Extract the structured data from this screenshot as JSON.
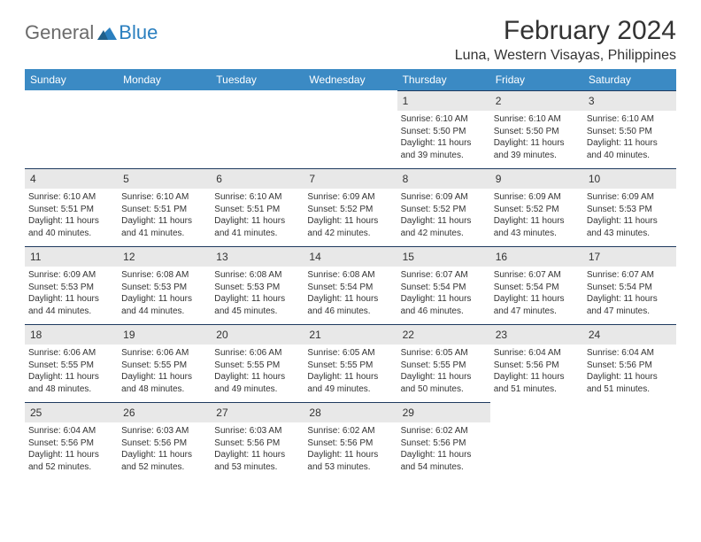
{
  "branding": {
    "logo_text_1": "General",
    "logo_text_2": "Blue",
    "logo_color_gray": "#6b6b6b",
    "logo_color_blue": "#2a7fbf"
  },
  "header": {
    "month_title": "February 2024",
    "location": "Luna, Western Visayas, Philippines"
  },
  "colors": {
    "header_row_bg": "#3b8ac4",
    "header_row_text": "#ffffff",
    "daynum_bg": "#e8e8e8",
    "cell_border_top": "#1f3a5f",
    "text": "#333333",
    "background": "#ffffff"
  },
  "day_headers": [
    "Sunday",
    "Monday",
    "Tuesday",
    "Wednesday",
    "Thursday",
    "Friday",
    "Saturday"
  ],
  "weeks": [
    [
      {
        "day": "",
        "lines": [
          "",
          "",
          "",
          ""
        ]
      },
      {
        "day": "",
        "lines": [
          "",
          "",
          "",
          ""
        ]
      },
      {
        "day": "",
        "lines": [
          "",
          "",
          "",
          ""
        ]
      },
      {
        "day": "",
        "lines": [
          "",
          "",
          "",
          ""
        ]
      },
      {
        "day": "1",
        "lines": [
          "Sunrise: 6:10 AM",
          "Sunset: 5:50 PM",
          "Daylight: 11 hours",
          "and 39 minutes."
        ]
      },
      {
        "day": "2",
        "lines": [
          "Sunrise: 6:10 AM",
          "Sunset: 5:50 PM",
          "Daylight: 11 hours",
          "and 39 minutes."
        ]
      },
      {
        "day": "3",
        "lines": [
          "Sunrise: 6:10 AM",
          "Sunset: 5:50 PM",
          "Daylight: 11 hours",
          "and 40 minutes."
        ]
      }
    ],
    [
      {
        "day": "4",
        "lines": [
          "Sunrise: 6:10 AM",
          "Sunset: 5:51 PM",
          "Daylight: 11 hours",
          "and 40 minutes."
        ]
      },
      {
        "day": "5",
        "lines": [
          "Sunrise: 6:10 AM",
          "Sunset: 5:51 PM",
          "Daylight: 11 hours",
          "and 41 minutes."
        ]
      },
      {
        "day": "6",
        "lines": [
          "Sunrise: 6:10 AM",
          "Sunset: 5:51 PM",
          "Daylight: 11 hours",
          "and 41 minutes."
        ]
      },
      {
        "day": "7",
        "lines": [
          "Sunrise: 6:09 AM",
          "Sunset: 5:52 PM",
          "Daylight: 11 hours",
          "and 42 minutes."
        ]
      },
      {
        "day": "8",
        "lines": [
          "Sunrise: 6:09 AM",
          "Sunset: 5:52 PM",
          "Daylight: 11 hours",
          "and 42 minutes."
        ]
      },
      {
        "day": "9",
        "lines": [
          "Sunrise: 6:09 AM",
          "Sunset: 5:52 PM",
          "Daylight: 11 hours",
          "and 43 minutes."
        ]
      },
      {
        "day": "10",
        "lines": [
          "Sunrise: 6:09 AM",
          "Sunset: 5:53 PM",
          "Daylight: 11 hours",
          "and 43 minutes."
        ]
      }
    ],
    [
      {
        "day": "11",
        "lines": [
          "Sunrise: 6:09 AM",
          "Sunset: 5:53 PM",
          "Daylight: 11 hours",
          "and 44 minutes."
        ]
      },
      {
        "day": "12",
        "lines": [
          "Sunrise: 6:08 AM",
          "Sunset: 5:53 PM",
          "Daylight: 11 hours",
          "and 44 minutes."
        ]
      },
      {
        "day": "13",
        "lines": [
          "Sunrise: 6:08 AM",
          "Sunset: 5:53 PM",
          "Daylight: 11 hours",
          "and 45 minutes."
        ]
      },
      {
        "day": "14",
        "lines": [
          "Sunrise: 6:08 AM",
          "Sunset: 5:54 PM",
          "Daylight: 11 hours",
          "and 46 minutes."
        ]
      },
      {
        "day": "15",
        "lines": [
          "Sunrise: 6:07 AM",
          "Sunset: 5:54 PM",
          "Daylight: 11 hours",
          "and 46 minutes."
        ]
      },
      {
        "day": "16",
        "lines": [
          "Sunrise: 6:07 AM",
          "Sunset: 5:54 PM",
          "Daylight: 11 hours",
          "and 47 minutes."
        ]
      },
      {
        "day": "17",
        "lines": [
          "Sunrise: 6:07 AM",
          "Sunset: 5:54 PM",
          "Daylight: 11 hours",
          "and 47 minutes."
        ]
      }
    ],
    [
      {
        "day": "18",
        "lines": [
          "Sunrise: 6:06 AM",
          "Sunset: 5:55 PM",
          "Daylight: 11 hours",
          "and 48 minutes."
        ]
      },
      {
        "day": "19",
        "lines": [
          "Sunrise: 6:06 AM",
          "Sunset: 5:55 PM",
          "Daylight: 11 hours",
          "and 48 minutes."
        ]
      },
      {
        "day": "20",
        "lines": [
          "Sunrise: 6:06 AM",
          "Sunset: 5:55 PM",
          "Daylight: 11 hours",
          "and 49 minutes."
        ]
      },
      {
        "day": "21",
        "lines": [
          "Sunrise: 6:05 AM",
          "Sunset: 5:55 PM",
          "Daylight: 11 hours",
          "and 49 minutes."
        ]
      },
      {
        "day": "22",
        "lines": [
          "Sunrise: 6:05 AM",
          "Sunset: 5:55 PM",
          "Daylight: 11 hours",
          "and 50 minutes."
        ]
      },
      {
        "day": "23",
        "lines": [
          "Sunrise: 6:04 AM",
          "Sunset: 5:56 PM",
          "Daylight: 11 hours",
          "and 51 minutes."
        ]
      },
      {
        "day": "24",
        "lines": [
          "Sunrise: 6:04 AM",
          "Sunset: 5:56 PM",
          "Daylight: 11 hours",
          "and 51 minutes."
        ]
      }
    ],
    [
      {
        "day": "25",
        "lines": [
          "Sunrise: 6:04 AM",
          "Sunset: 5:56 PM",
          "Daylight: 11 hours",
          "and 52 minutes."
        ]
      },
      {
        "day": "26",
        "lines": [
          "Sunrise: 6:03 AM",
          "Sunset: 5:56 PM",
          "Daylight: 11 hours",
          "and 52 minutes."
        ]
      },
      {
        "day": "27",
        "lines": [
          "Sunrise: 6:03 AM",
          "Sunset: 5:56 PM",
          "Daylight: 11 hours",
          "and 53 minutes."
        ]
      },
      {
        "day": "28",
        "lines": [
          "Sunrise: 6:02 AM",
          "Sunset: 5:56 PM",
          "Daylight: 11 hours",
          "and 53 minutes."
        ]
      },
      {
        "day": "29",
        "lines": [
          "Sunrise: 6:02 AM",
          "Sunset: 5:56 PM",
          "Daylight: 11 hours",
          "and 54 minutes."
        ]
      },
      {
        "day": "",
        "lines": [
          "",
          "",
          "",
          ""
        ]
      },
      {
        "day": "",
        "lines": [
          "",
          "",
          "",
          ""
        ]
      }
    ]
  ]
}
